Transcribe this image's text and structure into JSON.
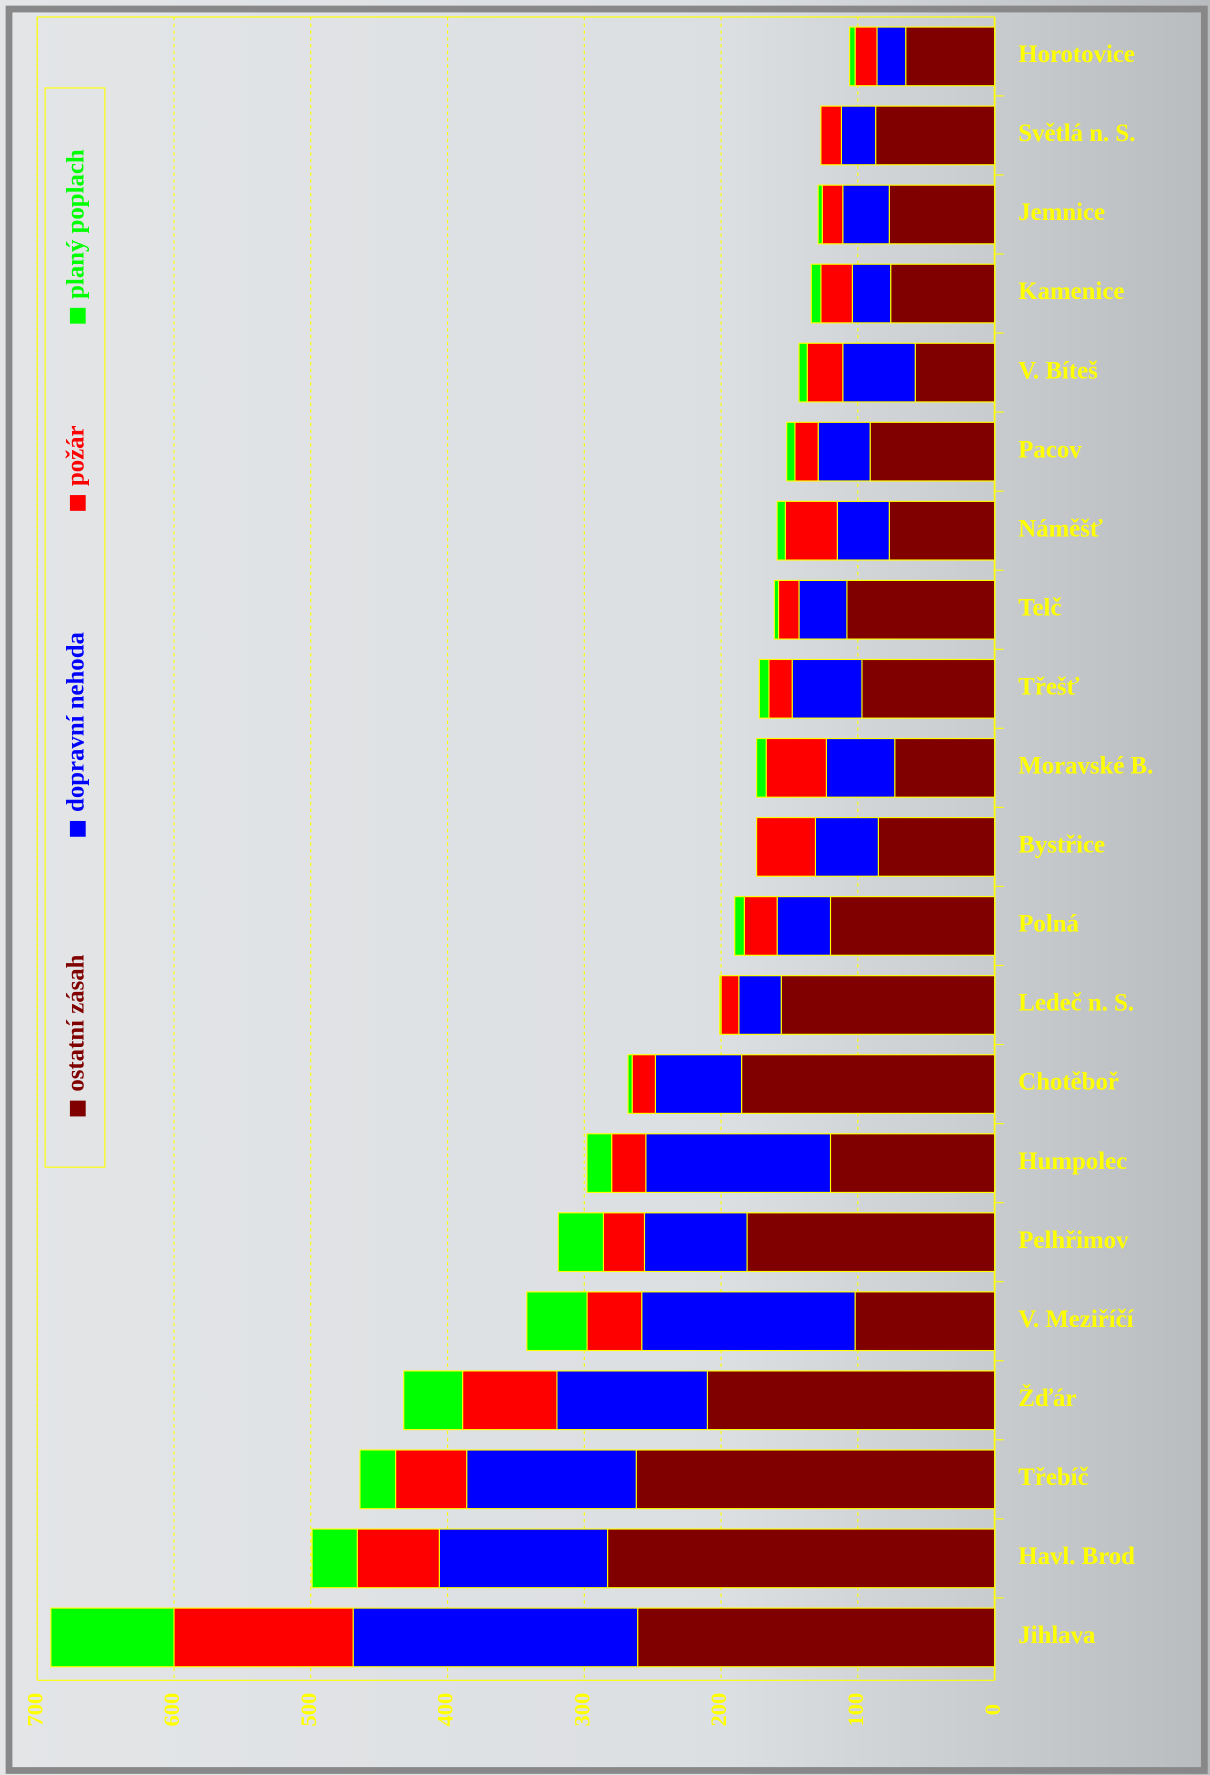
{
  "chart_data": {
    "type": "bar",
    "orientation": "horizontal",
    "stacked": true,
    "value_axis_reversed": true,
    "grid": true,
    "categories": [
      "Horotovice",
      "Světlá n. S.",
      "Jemnice",
      "Kamenice",
      "V. Bíteš",
      "Pacov",
      "Náměšť",
      "Telč",
      "Třešť",
      "Moravské B.",
      "Bystřice",
      "Polná",
      "Ledeč n. S.",
      "Chotěboř",
      "Humpolec",
      "Pelhřimov",
      "V. Meziříčí",
      "Žďár",
      "Třebíč",
      "Havl. Brod",
      "Jihlava"
    ],
    "series": [
      {
        "name": "ostatní zásah",
        "color": "#800000",
        "values": [
          65,
          87,
          77,
          76,
          58,
          91,
          77,
          108,
          97,
          73,
          85,
          120,
          156,
          185,
          120,
          181,
          102,
          210,
          262,
          283,
          261
        ]
      },
      {
        "name": "dopravní nehoda",
        "color": "#0000ff",
        "values": [
          21,
          25,
          34,
          28,
          53,
          38,
          38,
          35,
          51,
          50,
          46,
          39,
          31,
          63,
          135,
          75,
          156,
          110,
          124,
          123,
          208
        ]
      },
      {
        "name": "požár",
        "color": "#ff0000",
        "values": [
          16,
          15,
          15,
          23,
          26,
          17,
          38,
          15,
          17,
          44,
          43,
          24,
          13,
          17,
          25,
          30,
          40,
          69,
          52,
          60,
          131
        ]
      },
      {
        "name": "planý poplach",
        "color": "#00ff00",
        "values": [
          4,
          0,
          3,
          7,
          6,
          6,
          6,
          3,
          7,
          7,
          0,
          7,
          1,
          3,
          18,
          33,
          44,
          43,
          26,
          33,
          90
        ]
      }
    ],
    "ylim": [
      0,
      700
    ],
    "yticks": [
      0,
      100,
      200,
      300,
      400,
      500,
      600,
      700
    ]
  }
}
